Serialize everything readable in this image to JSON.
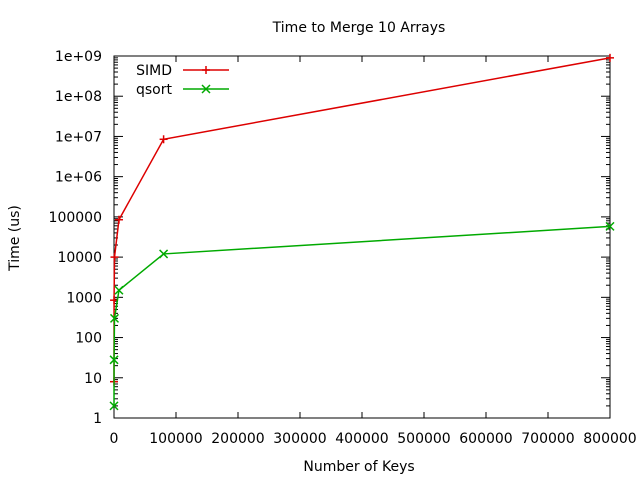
{
  "chart_data": {
    "type": "line",
    "title": "Time to Merge 10 Arrays",
    "xlabel": "Number of Keys",
    "ylabel": "Time (us)",
    "x_scale": "linear",
    "y_scale": "log",
    "xlim": [
      0,
      800000
    ],
    "ylim": [
      1,
      1000000000
    ],
    "x_ticks": [
      0,
      100000,
      200000,
      300000,
      400000,
      500000,
      600000,
      700000,
      800000
    ],
    "x_tick_labels": [
      "0",
      "100000",
      "200000",
      "300000",
      "400000",
      "500000",
      "600000",
      "700000",
      "800000"
    ],
    "y_ticks": [
      1,
      10,
      100,
      1000,
      10000,
      100000,
      1000000,
      10000000,
      100000000,
      1000000000
    ],
    "y_tick_labels": [
      "1",
      "10",
      "100",
      "1000",
      "10000",
      "100000",
      "1e+06",
      "1e+07",
      "1e+08",
      "1e+09"
    ],
    "grid": false,
    "legend_position": "top-left",
    "series": [
      {
        "name": "SIMD",
        "color": "#dd0000",
        "marker": "plus",
        "x": [
          10,
          100,
          800,
          8000,
          80000,
          800000
        ],
        "y": [
          8,
          850,
          10000,
          85000,
          8500000,
          900000000
        ]
      },
      {
        "name": "qsort",
        "color": "#00aa00",
        "marker": "cross",
        "x": [
          10,
          100,
          800,
          8000,
          80000,
          800000
        ],
        "y": [
          2,
          28,
          300,
          1500,
          12000,
          58000
        ]
      }
    ]
  }
}
